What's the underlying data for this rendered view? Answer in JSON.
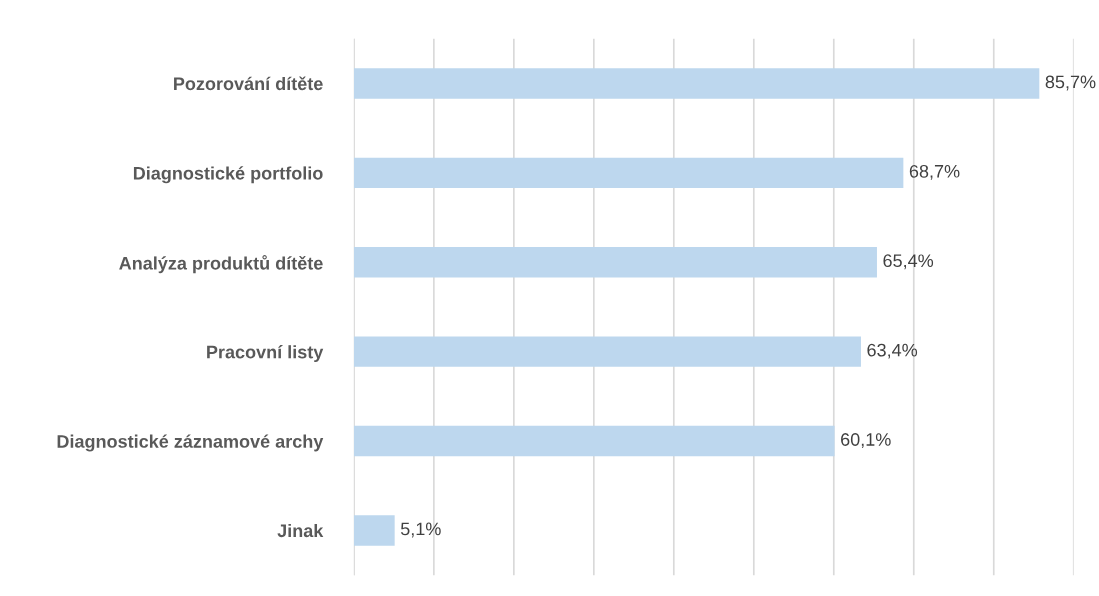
{
  "chart_data": {
    "type": "bar",
    "orientation": "horizontal",
    "categories": [
      "Pozorování dítěte",
      "Diagnostické portfolio",
      "Analýza produktů dítěte",
      "Pracovní listy",
      "Diagnostické záznamové archy",
      "Jinak"
    ],
    "values": [
      85.7,
      68.7,
      65.4,
      63.4,
      60.1,
      5.1
    ],
    "value_labels": [
      "85,7%",
      "68,7%",
      "65,4%",
      "63,4%",
      "60,1%",
      "5,1%"
    ],
    "color": "#bdd7ee",
    "xlim": [
      0,
      90
    ],
    "xticks": [
      {
        "value": 0,
        "label": null
      },
      {
        "value": 10,
        "label": null
      },
      {
        "value": 20,
        "label": null
      },
      {
        "value": 30,
        "label": null
      },
      {
        "value": 40,
        "label": null
      },
      {
        "value": 50,
        "label": null
      },
      {
        "value": 60,
        "label": null
      },
      {
        "value": 70,
        "label": null
      },
      {
        "value": 80,
        "label": null
      },
      {
        "value": 90,
        "label": null
      }
    ],
    "grid": "x",
    "tick_labels": "y"
  }
}
